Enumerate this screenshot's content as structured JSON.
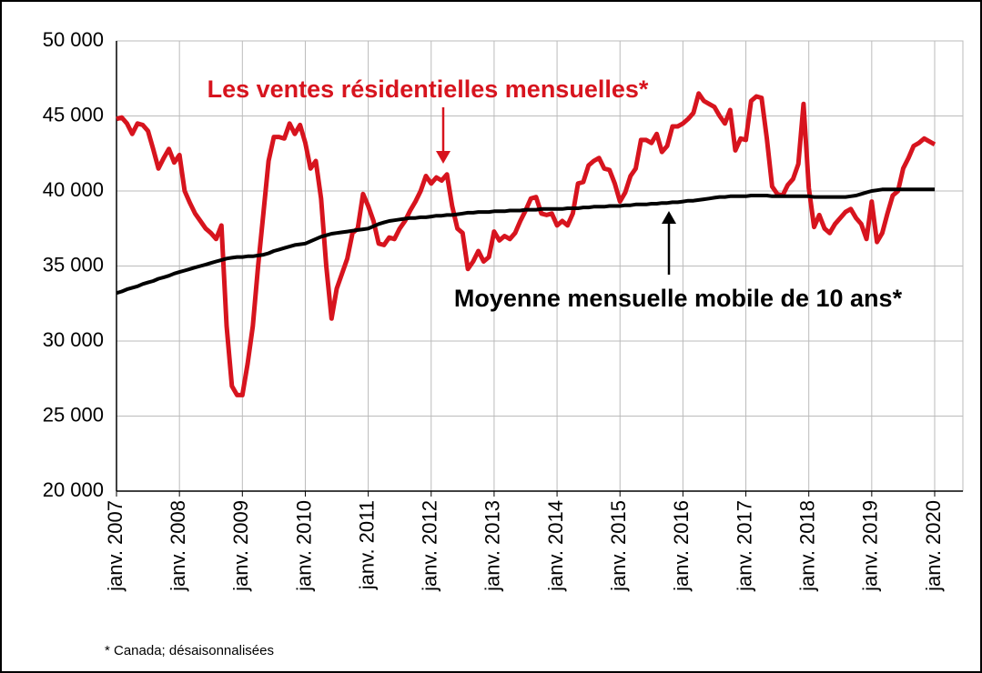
{
  "chart_data": {
    "type": "line",
    "categories": [
      "janv. 2007",
      null,
      null,
      null,
      null,
      null,
      null,
      null,
      null,
      null,
      null,
      null,
      "janv. 2008",
      null,
      null,
      null,
      null,
      null,
      null,
      null,
      null,
      null,
      null,
      null,
      "janv. 2009",
      null,
      null,
      null,
      null,
      null,
      null,
      null,
      null,
      null,
      null,
      null,
      "janv. 2010",
      null,
      null,
      null,
      null,
      null,
      null,
      null,
      null,
      null,
      null,
      null,
      "janv. 2011",
      null,
      null,
      null,
      null,
      null,
      null,
      null,
      null,
      null,
      null,
      null,
      "janv. 2012",
      null,
      null,
      null,
      null,
      null,
      null,
      null,
      null,
      null,
      null,
      null,
      "janv. 2013",
      null,
      null,
      null,
      null,
      null,
      null,
      null,
      null,
      null,
      null,
      null,
      "janv. 2014",
      null,
      null,
      null,
      null,
      null,
      null,
      null,
      null,
      null,
      null,
      null,
      "janv. 2015",
      null,
      null,
      null,
      null,
      null,
      null,
      null,
      null,
      null,
      null,
      null,
      "janv. 2016",
      null,
      null,
      null,
      null,
      null,
      null,
      null,
      null,
      null,
      null,
      null,
      "janv. 2017",
      null,
      null,
      null,
      null,
      null,
      null,
      null,
      null,
      null,
      null,
      null,
      "janv. 2018",
      null,
      null,
      null,
      null,
      null,
      null,
      null,
      null,
      null,
      null,
      null,
      "janv. 2019",
      null,
      null,
      null,
      null,
      null,
      null,
      null,
      null,
      null,
      null,
      null,
      "janv. 2020"
    ],
    "series": [
      {
        "name": "Les ventes résidentielles mensuelles*",
        "color": "#d7141e",
        "values": [
          44800,
          44900,
          44500,
          43800,
          44500,
          44400,
          44000,
          42800,
          41500,
          42200,
          42800,
          41900,
          42400,
          40000,
          39200,
          38500,
          38000,
          37500,
          37200,
          36800,
          37700,
          31000,
          27000,
          26400,
          26400,
          28500,
          31000,
          35000,
          38500,
          42000,
          43600,
          43600,
          43500,
          44500,
          43800,
          44400,
          43200,
          41500,
          42000,
          39500,
          35000,
          31500,
          33500,
          34500,
          35500,
          37200,
          37500,
          39800,
          39000,
          38000,
          36500,
          36400,
          36900,
          36800,
          37500,
          38000,
          38700,
          39300,
          40000,
          41000,
          40500,
          40900,
          40700,
          41100,
          39000,
          37500,
          37200,
          34800,
          35300,
          36000,
          35300,
          35600,
          37300,
          36700,
          37000,
          36800,
          37200,
          38000,
          38700,
          39500,
          39600,
          38500,
          38400,
          38500,
          37700,
          38000,
          37700,
          38500,
          40500,
          40600,
          41700,
          42000,
          42200,
          41500,
          41400,
          40500,
          39300,
          39900,
          41000,
          41500,
          43400,
          43400,
          43200,
          43800,
          42600,
          43000,
          44300,
          44300,
          44500,
          44800,
          45200,
          46500,
          46000,
          45800,
          45600,
          45000,
          44500,
          45400,
          42700,
          43500,
          43400,
          46000,
          46300,
          46200,
          43500,
          40300,
          39800,
          39700,
          40400,
          40800,
          41800,
          45800,
          40200,
          37600,
          38400,
          37500,
          37200,
          37800,
          38200,
          38600,
          38800,
          38200,
          37800,
          36800,
          39300,
          36600,
          37200,
          38500,
          39700,
          40000,
          41500,
          42200,
          43000,
          43200,
          43500,
          43300,
          43100
        ]
      },
      {
        "name": "Moyenne mensuelle mobile de 10 ans*",
        "color": "#000000",
        "values": [
          33200,
          33300,
          33450,
          33550,
          33650,
          33800,
          33900,
          34000,
          34150,
          34250,
          34350,
          34500,
          34600,
          34700,
          34800,
          34900,
          35000,
          35100,
          35200,
          35300,
          35400,
          35500,
          35550,
          35600,
          35600,
          35650,
          35650,
          35700,
          35750,
          35850,
          36000,
          36100,
          36200,
          36300,
          36400,
          36450,
          36500,
          36650,
          36800,
          36950,
          37050,
          37150,
          37200,
          37250,
          37300,
          37350,
          37400,
          37450,
          37500,
          37650,
          37800,
          37900,
          38000,
          38050,
          38100,
          38150,
          38200,
          38200,
          38250,
          38250,
          38300,
          38350,
          38350,
          38400,
          38400,
          38450,
          38500,
          38550,
          38550,
          38600,
          38600,
          38600,
          38650,
          38650,
          38650,
          38700,
          38700,
          38700,
          38750,
          38750,
          38750,
          38800,
          38800,
          38800,
          38800,
          38800,
          38850,
          38850,
          38850,
          38900,
          38900,
          38950,
          38950,
          38950,
          39000,
          39000,
          39000,
          39050,
          39050,
          39100,
          39100,
          39100,
          39150,
          39150,
          39200,
          39200,
          39250,
          39250,
          39300,
          39350,
          39350,
          39400,
          39450,
          39500,
          39550,
          39600,
          39600,
          39650,
          39650,
          39650,
          39650,
          39700,
          39700,
          39700,
          39700,
          39650,
          39650,
          39650,
          39650,
          39650,
          39650,
          39650,
          39650,
          39600,
          39600,
          39600,
          39600,
          39600,
          39600,
          39600,
          39650,
          39700,
          39800,
          39900,
          40000,
          40050,
          40100,
          40100,
          40100,
          40100,
          40100,
          40100,
          40100,
          40100,
          40100,
          40100,
          40100
        ]
      }
    ],
    "ylim": [
      20000,
      50000
    ],
    "yticks": [
      {
        "value": 20000,
        "label": "20 000"
      },
      {
        "value": 25000,
        "label": "25 000"
      },
      {
        "value": 30000,
        "label": "30 000"
      },
      {
        "value": 35000,
        "label": "35 000"
      },
      {
        "value": 40000,
        "label": "40 000"
      },
      {
        "value": 45000,
        "label": "45 000"
      },
      {
        "value": 50000,
        "label": "50 000"
      }
    ],
    "grid": true,
    "footnote": "* Canada; désaisonnalisées"
  }
}
